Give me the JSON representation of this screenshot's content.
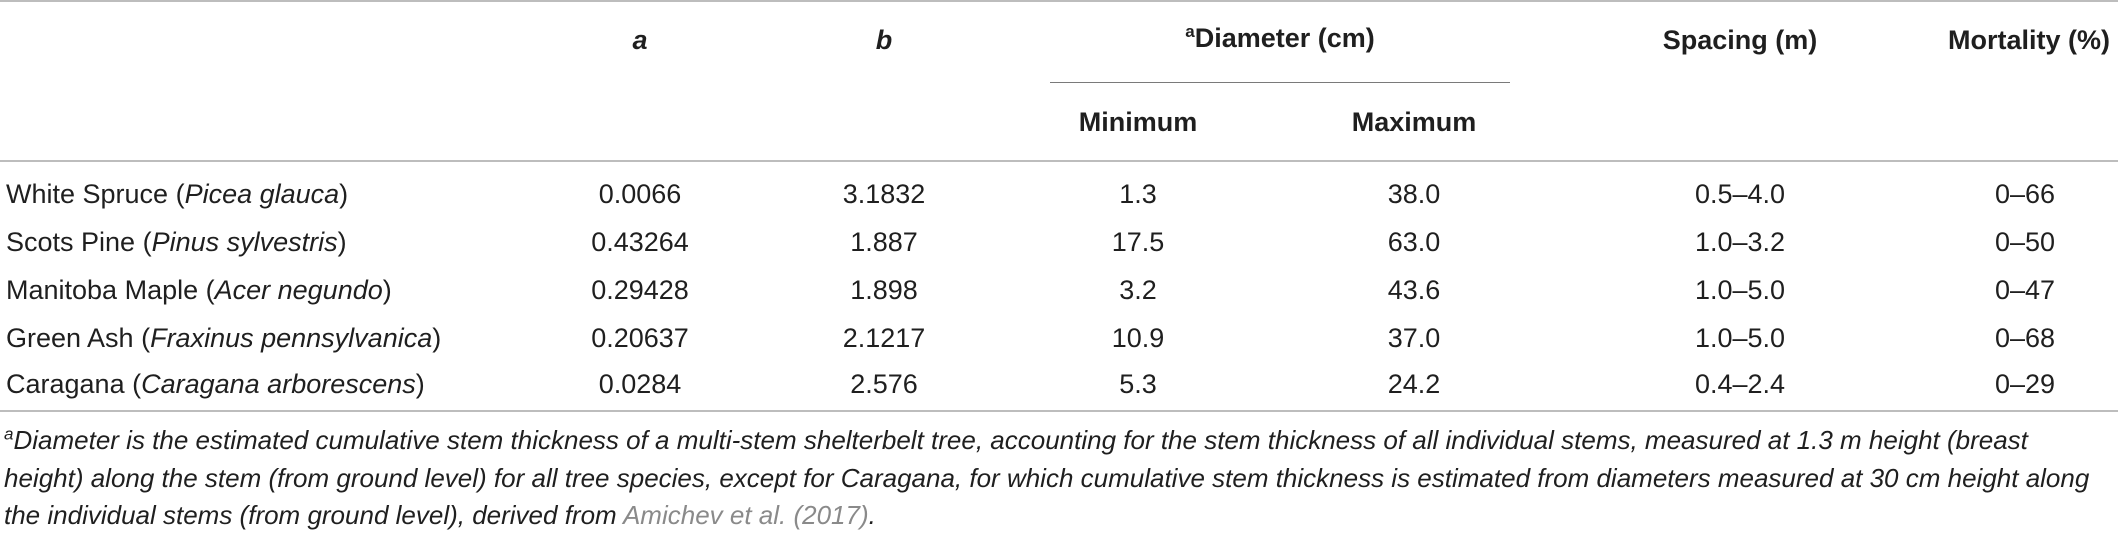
{
  "header": {
    "col_a": "a",
    "col_b": "b",
    "diameter_sup": "a",
    "diameter": "Diameter (cm)",
    "minimum": "Minimum",
    "maximum": "Maximum",
    "spacing": "Spacing (m)",
    "mortality": "Mortality (%)"
  },
  "rows": [
    {
      "name": "White Spruce (",
      "latin": "Picea glauca",
      "close": ")",
      "a": "0.0066",
      "b": "3.1832",
      "min": "1.3",
      "max": "38.0",
      "spacing": "0.5–4.0",
      "mortality": "0–66"
    },
    {
      "name": "Scots Pine (",
      "latin": "Pinus sylvestris",
      "close": ")",
      "a": "0.43264",
      "b": "1.887",
      "min": "17.5",
      "max": "63.0",
      "spacing": "1.0–3.2",
      "mortality": "0–50"
    },
    {
      "name": "Manitoba Maple (",
      "latin": "Acer negundo",
      "close": ")",
      "a": "0.29428",
      "b": "1.898",
      "min": "3.2",
      "max": "43.6",
      "spacing": "1.0–5.0",
      "mortality": "0–47"
    },
    {
      "name": "Green Ash (",
      "latin": "Fraxinus pennsylvanica",
      "close": ")",
      "a": "0.20637",
      "b": "2.1217",
      "min": "10.9",
      "max": "37.0",
      "spacing": "1.0–5.0",
      "mortality": "0–68"
    },
    {
      "name": "Caragana (",
      "latin": "Caragana arborescens",
      "close": ")",
      "a": "0.0284",
      "b": "2.576",
      "min": "5.3",
      "max": "24.2",
      "spacing": "0.4–2.4",
      "mortality": "0–29"
    }
  ],
  "footnote": {
    "sup": "a",
    "text": "Diameter is the estimated cumulative stem thickness of a multi-stem shelterbelt tree, accounting for the stem thickness of all individual stems, measured at 1.3 m height (breast height) along the stem (from ground level) for all tree species, except for Caragana, for which cumulative stem thickness is estimated from diameters measured at 30 cm height along the individual stems (from ground level), derived from ",
    "link": "Amichev et al. (2017)",
    "end": "."
  },
  "colors": {
    "text": "#1f1f1f",
    "rule": "#bdbdbd",
    "link": "#8a8a8a"
  }
}
